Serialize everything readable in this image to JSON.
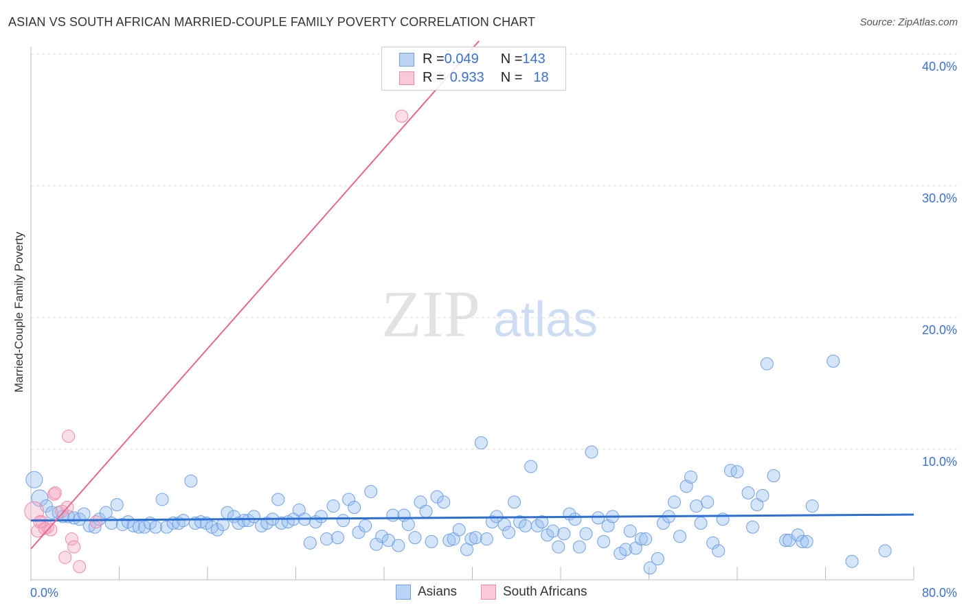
{
  "title": "ASIAN VS SOUTH AFRICAN MARRIED-COUPLE FAMILY POVERTY CORRELATION CHART",
  "source": "Source: ZipAtlas.com",
  "watermark": {
    "zip": "ZIP",
    "atlas": "atlas"
  },
  "legend": {
    "asians": {
      "r_label": "R = ",
      "r": "0.049",
      "n_label": "N = ",
      "n": "143"
    },
    "south_africans": {
      "r_label": "R = ",
      "r": "0.933",
      "n_label": "N = ",
      "n": "18"
    }
  },
  "chart_data": {
    "type": "scatter",
    "title": "ASIAN VS SOUTH AFRICAN MARRIED-COUPLE FAMILY POVERTY CORRELATION CHART",
    "xlabel": "",
    "ylabel": "Married-Couple Family Poverty",
    "xlim": [
      0,
      80
    ],
    "ylim": [
      0,
      40
    ],
    "x_tick_labels": [
      "0.0%",
      "80.0%"
    ],
    "y_tick_labels": [
      "10.0%",
      "20.0%",
      "30.0%",
      "40.0%"
    ],
    "y_ticks": [
      10,
      20,
      30,
      40
    ],
    "legend_entries": [
      "Asians",
      "South Africans"
    ],
    "colors": {
      "asians": "#6fa0e8",
      "south_africans": "#f08aa8",
      "asians_line": "#2a6fd6",
      "south_africans_line": "#e8668f",
      "axis_text": "#3b6fd6"
    },
    "series": [
      {
        "name": "Asians",
        "trend": [
          [
            0,
            4.6
          ],
          [
            80,
            5.05
          ]
        ],
        "points": [
          [
            0.3,
            7.7
          ],
          [
            0.8,
            6.3
          ],
          [
            1.4,
            5.7
          ],
          [
            1.9,
            5.2
          ],
          [
            2.5,
            5.2
          ],
          [
            2.9,
            4.9
          ],
          [
            3.4,
            4.9
          ],
          [
            3.9,
            4.8
          ],
          [
            4.4,
            4.7
          ],
          [
            4.8,
            5.1
          ],
          [
            5.3,
            4.2
          ],
          [
            5.8,
            4.1
          ],
          [
            6.2,
            4.7
          ],
          [
            6.8,
            5.2
          ],
          [
            7.3,
            4.4
          ],
          [
            7.8,
            5.8
          ],
          [
            8.3,
            4.3
          ],
          [
            8.8,
            4.5
          ],
          [
            9.3,
            4.2
          ],
          [
            9.8,
            4.1
          ],
          [
            10.3,
            4.1
          ],
          [
            10.8,
            4.4
          ],
          [
            11.3,
            4.1
          ],
          [
            11.9,
            6.2
          ],
          [
            12.3,
            4.1
          ],
          [
            12.9,
            4.4
          ],
          [
            13.4,
            4.4
          ],
          [
            13.8,
            4.6
          ],
          [
            14.5,
            7.6
          ],
          [
            14.9,
            4.4
          ],
          [
            15.4,
            4.5
          ],
          [
            15.9,
            4.4
          ],
          [
            16.4,
            4.1
          ],
          [
            16.9,
            3.9
          ],
          [
            17.4,
            4.3
          ],
          [
            17.8,
            5.2
          ],
          [
            18.4,
            4.9
          ],
          [
            18.8,
            4.4
          ],
          [
            19.3,
            4.6
          ],
          [
            19.7,
            4.6
          ],
          [
            20.2,
            4.9
          ],
          [
            20.9,
            4.2
          ],
          [
            21.4,
            4.4
          ],
          [
            21.9,
            4.7
          ],
          [
            22.4,
            6.2
          ],
          [
            22.7,
            4.4
          ],
          [
            23.3,
            4.5
          ],
          [
            23.8,
            4.7
          ],
          [
            24.3,
            5.4
          ],
          [
            24.8,
            4.7
          ],
          [
            25.3,
            2.9
          ],
          [
            25.8,
            4.5
          ],
          [
            26.3,
            4.9
          ],
          [
            26.8,
            3.2
          ],
          [
            27.4,
            5.7
          ],
          [
            27.8,
            3.3
          ],
          [
            28.3,
            4.6
          ],
          [
            28.8,
            6.2
          ],
          [
            29.3,
            5.6
          ],
          [
            29.7,
            3.7
          ],
          [
            30.3,
            4.2
          ],
          [
            30.8,
            6.8
          ],
          [
            31.3,
            2.8
          ],
          [
            31.8,
            3.4
          ],
          [
            32.4,
            3.1
          ],
          [
            32.8,
            5.0
          ],
          [
            33.3,
            2.7
          ],
          [
            33.8,
            5.0
          ],
          [
            34.2,
            4.3
          ],
          [
            34.8,
            3.3
          ],
          [
            35.3,
            6.0
          ],
          [
            35.8,
            5.3
          ],
          [
            36.3,
            3.0
          ],
          [
            36.8,
            6.4
          ],
          [
            37.4,
            6.0
          ],
          [
            37.9,
            3.1
          ],
          [
            38.3,
            3.2
          ],
          [
            38.8,
            3.9
          ],
          [
            39.5,
            2.4
          ],
          [
            39.9,
            3.2
          ],
          [
            40.3,
            3.3
          ],
          [
            40.8,
            10.5
          ],
          [
            41.3,
            3.2
          ],
          [
            41.8,
            4.5
          ],
          [
            42.2,
            4.9
          ],
          [
            42.9,
            4.3
          ],
          [
            43.3,
            3.7
          ],
          [
            43.8,
            6.0
          ],
          [
            44.3,
            4.5
          ],
          [
            44.8,
            4.2
          ],
          [
            45.3,
            8.7
          ],
          [
            45.9,
            4.2
          ],
          [
            46.3,
            4.5
          ],
          [
            46.8,
            3.5
          ],
          [
            47.3,
            3.8
          ],
          [
            47.8,
            2.6
          ],
          [
            48.3,
            3.6
          ],
          [
            48.8,
            5.1
          ],
          [
            49.3,
            4.7
          ],
          [
            49.7,
            2.6
          ],
          [
            50.3,
            3.6
          ],
          [
            50.8,
            9.8
          ],
          [
            51.4,
            4.8
          ],
          [
            51.9,
            3.0
          ],
          [
            52.3,
            4.2
          ],
          [
            52.7,
            4.9
          ],
          [
            53.4,
            2.1
          ],
          [
            53.9,
            2.4
          ],
          [
            54.3,
            3.8
          ],
          [
            54.8,
            2.5
          ],
          [
            55.3,
            3.2
          ],
          [
            55.7,
            3.2
          ],
          [
            56.1,
            1.0
          ],
          [
            56.8,
            1.7
          ],
          [
            57.3,
            4.4
          ],
          [
            57.8,
            4.9
          ],
          [
            58.3,
            6.0
          ],
          [
            58.8,
            3.4
          ],
          [
            59.4,
            7.2
          ],
          [
            59.8,
            7.9
          ],
          [
            60.3,
            5.7
          ],
          [
            60.7,
            4.4
          ],
          [
            61.3,
            6.0
          ],
          [
            61.8,
            2.9
          ],
          [
            62.3,
            2.3
          ],
          [
            62.7,
            4.7
          ],
          [
            63.4,
            8.4
          ],
          [
            64.0,
            8.3
          ],
          [
            65.0,
            6.7
          ],
          [
            65.4,
            4.1
          ],
          [
            65.8,
            5.8
          ],
          [
            66.3,
            6.5
          ],
          [
            66.7,
            16.5
          ],
          [
            67.3,
            8.0
          ],
          [
            68.4,
            3.1
          ],
          [
            68.7,
            3.1
          ],
          [
            69.5,
            3.5
          ],
          [
            69.9,
            3.0
          ],
          [
            70.3,
            3.0
          ],
          [
            70.8,
            5.7
          ],
          [
            72.7,
            16.7
          ],
          [
            74.4,
            1.5
          ],
          [
            77.4,
            2.3
          ]
        ]
      },
      {
        "name": "South Africans",
        "trend": [
          [
            0,
            2.45
          ],
          [
            40.6,
            41.0
          ]
        ],
        "points": [
          [
            0.3,
            5.3
          ],
          [
            0.6,
            3.8
          ],
          [
            1.0,
            4.5
          ],
          [
            1.5,
            4.1
          ],
          [
            2.1,
            6.6
          ],
          [
            2.2,
            6.7
          ],
          [
            3.4,
            11.0
          ],
          [
            3.3,
            5.6
          ],
          [
            2.8,
            5.3
          ],
          [
            3.7,
            3.2
          ],
          [
            3.9,
            2.6
          ],
          [
            3.1,
            1.8
          ],
          [
            4.4,
            1.1
          ],
          [
            33.6,
            35.3
          ],
          [
            0.8,
            4.5
          ],
          [
            1.25,
            4.0
          ],
          [
            5.9,
            4.5
          ],
          [
            1.8,
            3.9
          ]
        ]
      }
    ]
  }
}
